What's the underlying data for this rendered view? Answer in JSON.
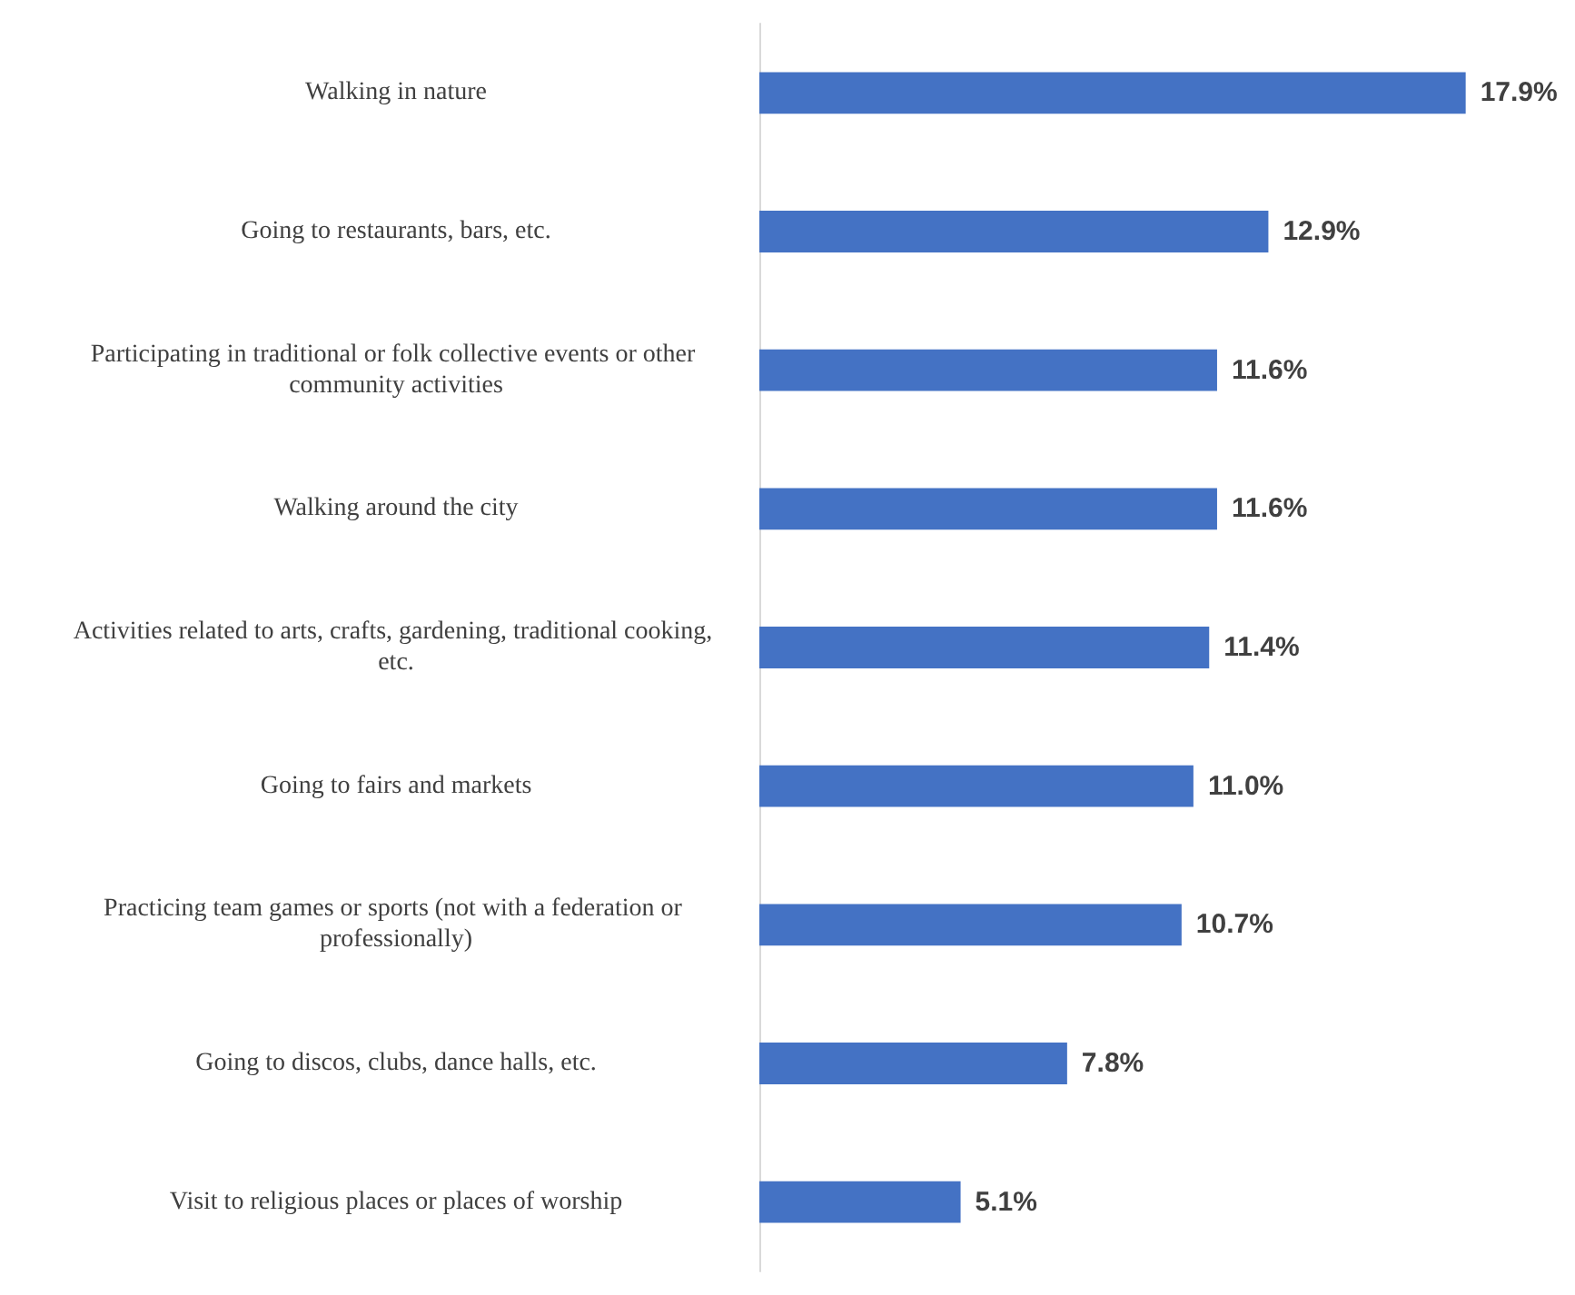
{
  "chart_data": {
    "type": "bar",
    "orientation": "horizontal",
    "categories": [
      "Walking in nature",
      "Going to restaurants, bars, etc.",
      "Participating in traditional or folk collective events or other community activities",
      "Walking around the city",
      "Activities related to arts, crafts, gardening, traditional cooking, etc.",
      "Going to fairs and markets",
      "Practicing team games or sports (not with a federation or professionally)",
      "Going to discos, clubs, dance halls, etc.",
      "Visit to religious places or places of worship"
    ],
    "values": [
      17.9,
      12.9,
      11.6,
      11.6,
      11.4,
      11.0,
      10.7,
      7.8,
      5.1
    ],
    "value_labels": [
      "17.9%",
      "12.9%",
      "11.6%",
      "11.6%",
      "11.4%",
      "11.0%",
      "10.7%",
      "7.8%",
      "5.1%"
    ],
    "color": "#4472c4",
    "grid": false
  }
}
